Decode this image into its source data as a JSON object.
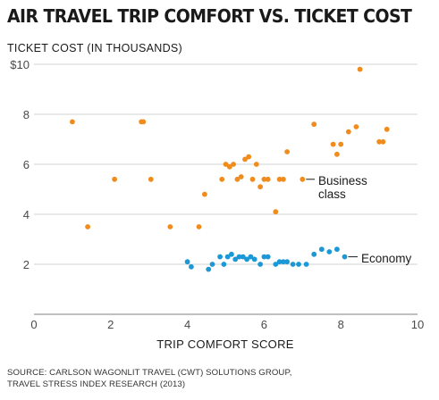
{
  "chart_data": {
    "type": "scatter",
    "title": "AIR TRAVEL TRIP COMFORT VS. TICKET COST",
    "ylabel": "TICKET COST (IN THOUSANDS)",
    "xlabel": "TRIP COMFORT SCORE",
    "xlim": [
      0,
      10
    ],
    "ylim": [
      0,
      10
    ],
    "x_ticks": [
      0,
      2,
      4,
      6,
      8,
      10
    ],
    "y_ticks": [
      2,
      4,
      6,
      8,
      10
    ],
    "y_tick_labels": [
      "2",
      "4",
      "6",
      "8",
      "$10"
    ],
    "grid": true,
    "series": [
      {
        "name": "Business class",
        "label_lines": [
          "Business",
          "class"
        ],
        "color": "#F08C1E",
        "points": [
          [
            1.0,
            7.7
          ],
          [
            1.4,
            3.5
          ],
          [
            2.1,
            5.4
          ],
          [
            2.8,
            7.7
          ],
          [
            2.85,
            7.7
          ],
          [
            3.05,
            5.4
          ],
          [
            3.55,
            3.5
          ],
          [
            4.3,
            3.5
          ],
          [
            4.45,
            4.8
          ],
          [
            4.9,
            5.4
          ],
          [
            5.0,
            6.0
          ],
          [
            5.1,
            5.9
          ],
          [
            5.2,
            6.0
          ],
          [
            5.3,
            5.4
          ],
          [
            5.4,
            5.5
          ],
          [
            5.5,
            6.2
          ],
          [
            5.6,
            6.3
          ],
          [
            5.7,
            5.4
          ],
          [
            5.8,
            6.0
          ],
          [
            5.9,
            5.1
          ],
          [
            6.0,
            5.4
          ],
          [
            6.1,
            5.4
          ],
          [
            6.3,
            4.1
          ],
          [
            6.4,
            5.4
          ],
          [
            6.5,
            5.4
          ],
          [
            6.6,
            6.5
          ],
          [
            7.0,
            5.4
          ],
          [
            7.3,
            7.6
          ],
          [
            7.8,
            6.8
          ],
          [
            7.9,
            6.4
          ],
          [
            8.0,
            6.8
          ],
          [
            8.2,
            7.3
          ],
          [
            8.4,
            7.5
          ],
          [
            8.5,
            9.8
          ],
          [
            9.0,
            6.9
          ],
          [
            9.1,
            6.9
          ],
          [
            9.2,
            7.4
          ]
        ]
      },
      {
        "name": "Economy",
        "label_lines": [
          "Economy"
        ],
        "color": "#1B98D5",
        "points": [
          [
            4.0,
            2.1
          ],
          [
            4.1,
            1.9
          ],
          [
            4.55,
            1.8
          ],
          [
            4.65,
            2.0
          ],
          [
            4.85,
            2.3
          ],
          [
            4.95,
            2.0
          ],
          [
            5.05,
            2.3
          ],
          [
            5.15,
            2.4
          ],
          [
            5.25,
            2.2
          ],
          [
            5.35,
            2.3
          ],
          [
            5.45,
            2.3
          ],
          [
            5.55,
            2.2
          ],
          [
            5.65,
            2.3
          ],
          [
            5.75,
            2.2
          ],
          [
            5.9,
            2.0
          ],
          [
            6.0,
            2.3
          ],
          [
            6.1,
            2.3
          ],
          [
            6.3,
            2.0
          ],
          [
            6.4,
            2.1
          ],
          [
            6.5,
            2.1
          ],
          [
            6.6,
            2.1
          ],
          [
            6.75,
            2.0
          ],
          [
            6.9,
            2.0
          ],
          [
            7.1,
            2.0
          ],
          [
            7.3,
            2.4
          ],
          [
            7.5,
            2.6
          ],
          [
            7.7,
            2.5
          ],
          [
            7.9,
            2.6
          ],
          [
            8.1,
            2.3
          ]
        ]
      }
    ]
  },
  "source_lines": [
    "SOURCE: CARLSON WAGONLIT TRAVEL (CWT) SOLUTIONS GROUP,",
    "TRAVEL STRESS INDEX RESEARCH (2013)"
  ]
}
